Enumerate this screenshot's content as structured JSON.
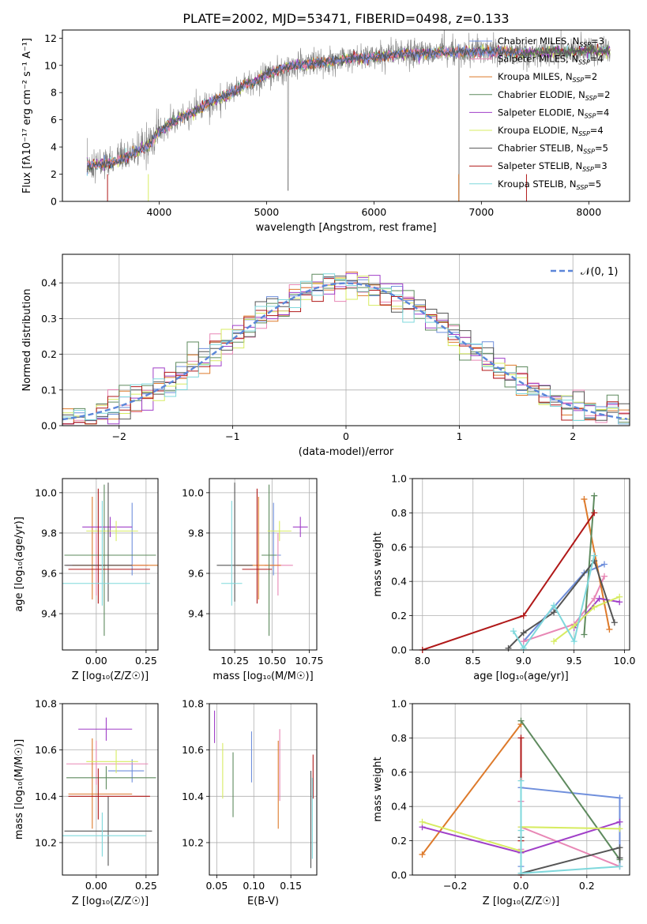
{
  "figure_title": "PLATE=2002, MJD=53471, FIBERID=0498, z=0.133",
  "colors": {
    "chabrier_miles": "#6f8fdc",
    "salpeter_miles": "#e887b5",
    "kroupa_miles": "#dd7a2b",
    "chabrier_elodie": "#5e8a5e",
    "salpeter_elodie": "#a03fc8",
    "kroupa_elodie": "#d7ec62",
    "chabrier_stelib": "#555555",
    "salpeter_stelib": "#b01818",
    "kroupa_stelib": "#7fd8dc",
    "spectrum": "#808080",
    "normal": "#5b86d9",
    "grid": "#b0b0b0"
  },
  "chart_data": [
    {
      "id": "spectrum",
      "type": "line",
      "title": "PLATE=2002, MJD=53471, FIBERID=0498, z=0.133",
      "xlabel": "wavelength [Angstrom, rest frame]",
      "ylabel": "Flux [fλ10⁻¹⁷ erg cm⁻² s⁻¹ A⁻¹]",
      "xlim": [
        3100,
        8380
      ],
      "ylim": [
        0,
        12.6
      ],
      "xticks": [
        4000,
        5000,
        6000,
        7000,
        8000
      ],
      "yticks": [
        0,
        2,
        4,
        6,
        8,
        10,
        12
      ],
      "grid": false,
      "legend_position": "top-right",
      "legend": [
        {
          "label": "Chabrier MILES, N",
          "sub": "SSP",
          "suffix": "=3",
          "color_key": "chabrier_miles"
        },
        {
          "label": "Salpeter MILES, N",
          "sub": "SSP",
          "suffix": "=4",
          "color_key": "salpeter_miles"
        },
        {
          "label": "Kroupa MILES, N",
          "sub": "SSP",
          "suffix": "=2",
          "color_key": "kroupa_miles"
        },
        {
          "label": "Chabrier ELODIE, N",
          "sub": "SSP",
          "suffix": "=2",
          "color_key": "chabrier_elodie"
        },
        {
          "label": "Salpeter ELODIE, N",
          "sub": "SSP",
          "suffix": "=4",
          "color_key": "salpeter_elodie"
        },
        {
          "label": "Kroupa ELODIE, N",
          "sub": "SSP",
          "suffix": "=4",
          "color_key": "kroupa_elodie"
        },
        {
          "label": "Chabrier STELIB, N",
          "sub": "SSP",
          "suffix": "=5",
          "color_key": "chabrier_stelib"
        },
        {
          "label": "Salpeter STELIB, N",
          "sub": "SSP",
          "suffix": "=3",
          "color_key": "salpeter_stelib"
        },
        {
          "label": "Kroupa STELIB, N",
          "sub": "SSP",
          "suffix": "=5",
          "color_key": "kroupa_stelib"
        }
      ],
      "continuum": {
        "x": [
          3330,
          3500,
          3600,
          3700,
          3800,
          3900,
          4000,
          4100,
          4200,
          4300,
          4400,
          4500,
          4600,
          4700,
          4800,
          4900,
          5000,
          5200,
          5400,
          5600,
          5800,
          6000,
          6200,
          6400,
          6600,
          6800,
          7000,
          7200,
          7400,
          7600,
          7800,
          8000,
          8200
        ],
        "y": [
          2.6,
          2.8,
          2.9,
          3.3,
          3.7,
          4.1,
          5.1,
          5.6,
          6.2,
          6.5,
          6.9,
          7.4,
          7.7,
          8.1,
          8.6,
          8.8,
          9.4,
          9.9,
          10.1,
          10.3,
          10.5,
          10.6,
          10.8,
          10.9,
          10.9,
          11.0,
          11.0,
          11.0,
          10.9,
          11.0,
          11.0,
          11.1,
          11.0
        ]
      }
    },
    {
      "id": "residuals",
      "type": "histogram",
      "xlabel": "(data-model)/error",
      "ylabel": "Normed distribution",
      "xlim": [
        -2.5,
        2.5
      ],
      "ylim": [
        0,
        0.48
      ],
      "xticks": [
        -2,
        -1,
        0,
        1,
        2
      ],
      "yticks": [
        0.0,
        0.1,
        0.2,
        0.3,
        0.4
      ],
      "grid": true,
      "legend_position": "top-right",
      "legend": [
        {
          "label": "𝒩(0, 1)",
          "color_key": "normal",
          "style": "dashed"
        }
      ],
      "bin_width": 0.1,
      "normal_curve": {
        "mu": 0,
        "sigma": 1
      }
    },
    {
      "id": "age_vs_Z",
      "type": "errorbar",
      "xlabel": "Z [log₁₀(Z/Z☉)]",
      "ylabel": "age  [log₁₀(age/yr)]",
      "xlim": [
        -0.17,
        0.31
      ],
      "ylim": [
        9.22,
        10.07
      ],
      "xticks": [
        0.0,
        0.25
      ],
      "yticks": [
        9.4,
        9.6,
        9.8,
        10.0
      ],
      "grid": true,
      "points": [
        {
          "model": "chabrier_miles",
          "x": 0.18,
          "y": 9.69,
          "xerr": [
            0.34,
            0.12
          ],
          "yerr": [
            0.1,
            0.26
          ]
        },
        {
          "model": "salpeter_miles",
          "x": 0.0,
          "y": 9.64,
          "xerr": [
            0.15,
            0.26
          ],
          "yerr": [
            0.15,
            0.16
          ]
        },
        {
          "model": "kroupa_miles",
          "x": -0.02,
          "y": 9.64,
          "xerr": [
            0.1,
            0.33
          ],
          "yerr": [
            0.17,
            0.34
          ]
        },
        {
          "model": "chabrier_elodie",
          "x": 0.04,
          "y": 9.69,
          "xerr": [
            0.2,
            0.26
          ],
          "yerr": [
            0.4,
            0.35
          ]
        },
        {
          "model": "salpeter_elodie",
          "x": 0.07,
          "y": 9.83,
          "xerr": [
            0.14,
            0.11
          ],
          "yerr": [
            0.05,
            0.05
          ]
        },
        {
          "model": "kroupa_elodie",
          "x": 0.1,
          "y": 9.81,
          "xerr": [
            0.15,
            0.11
          ],
          "yerr": [
            0.05,
            0.05
          ]
        },
        {
          "model": "chabrier_stelib",
          "x": 0.06,
          "y": 9.64,
          "xerr": [
            0.22,
            0.12
          ],
          "yerr": [
            0.18,
            0.41
          ]
        },
        {
          "model": "salpeter_stelib",
          "x": 0.01,
          "y": 9.62,
          "xerr": [
            0.15,
            0.26
          ],
          "yerr": [
            0.17,
            0.4
          ]
        },
        {
          "model": "kroupa_stelib",
          "x": 0.03,
          "y": 9.55,
          "xerr": [
            0.2,
            0.24
          ],
          "yerr": [
            0.11,
            0.41
          ]
        }
      ]
    },
    {
      "id": "age_vs_mass",
      "type": "errorbar",
      "xlabel": "mass [log₁₀(M/M☉)]",
      "ylabel": "",
      "xlim": [
        10.08,
        10.8
      ],
      "ylim": [
        9.22,
        10.07
      ],
      "xticks": [
        10.25,
        10.5,
        10.75
      ],
      "yticks": [
        9.4,
        9.6,
        9.8,
        10.0
      ],
      "grid": true,
      "points": [
        {
          "model": "chabrier_miles",
          "x": 10.51,
          "y": 9.69,
          "xerr": [
            0.05,
            0.05
          ],
          "yerr": [
            0.1,
            0.26
          ]
        },
        {
          "model": "salpeter_miles",
          "x": 10.54,
          "y": 9.64,
          "xerr": [
            0.09,
            0.1
          ],
          "yerr": [
            0.15,
            0.16
          ]
        },
        {
          "model": "kroupa_miles",
          "x": 10.41,
          "y": 9.64,
          "xerr": [
            0.15,
            0.15
          ],
          "yerr": [
            0.17,
            0.34
          ]
        },
        {
          "model": "chabrier_elodie",
          "x": 10.48,
          "y": 9.69,
          "xerr": [
            0.05,
            0.05
          ],
          "yerr": [
            0.4,
            0.35
          ]
        },
        {
          "model": "salpeter_elodie",
          "x": 10.69,
          "y": 9.83,
          "xerr": [
            0.05,
            0.05
          ],
          "yerr": [
            0.05,
            0.05
          ]
        },
        {
          "model": "kroupa_elodie",
          "x": 10.55,
          "y": 9.81,
          "xerr": [
            0.08,
            0.08
          ],
          "yerr": [
            0.05,
            0.05
          ]
        },
        {
          "model": "chabrier_stelib",
          "x": 10.25,
          "y": 9.64,
          "xerr": [
            0.12,
            0.12
          ],
          "yerr": [
            0.18,
            0.41
          ]
        },
        {
          "model": "salpeter_stelib",
          "x": 10.4,
          "y": 9.62,
          "xerr": [
            0.1,
            0.1
          ],
          "yerr": [
            0.17,
            0.4
          ]
        },
        {
          "model": "kroupa_stelib",
          "x": 10.23,
          "y": 9.55,
          "xerr": [
            0.07,
            0.07
          ],
          "yerr": [
            0.11,
            0.41
          ]
        }
      ]
    },
    {
      "id": "weight_vs_age",
      "type": "line",
      "xlabel": "age  [log₁₀(age/yr)]",
      "ylabel": "mass weight",
      "xlim": [
        7.9,
        10.05
      ],
      "ylim": [
        0,
        1
      ],
      "xticks": [
        8.0,
        8.5,
        9.0,
        9.5,
        10.0
      ],
      "yticks": [
        0.0,
        0.2,
        0.4,
        0.6,
        0.8,
        1.0
      ],
      "grid": true,
      "series": [
        {
          "model": "chabrier_miles",
          "x": [
            9.0,
            9.6,
            9.8
          ],
          "y": [
            0.05,
            0.45,
            0.5
          ]
        },
        {
          "model": "salpeter_miles",
          "x": [
            9.0,
            9.5,
            9.7,
            9.8
          ],
          "y": [
            0.05,
            0.15,
            0.3,
            0.43
          ]
        },
        {
          "model": "kroupa_miles",
          "x": [
            9.6,
            9.85
          ],
          "y": [
            0.88,
            0.12
          ]
        },
        {
          "model": "chabrier_elodie",
          "x": [
            9.6,
            9.7
          ],
          "y": [
            0.09,
            0.9
          ]
        },
        {
          "model": "salpeter_elodie",
          "x": [
            9.5,
            9.75,
            9.95
          ],
          "y": [
            0.13,
            0.3,
            0.28
          ]
        },
        {
          "model": "kroupa_elodie",
          "x": [
            9.3,
            9.5,
            9.7,
            9.95
          ],
          "y": [
            0.05,
            0.14,
            0.25,
            0.31
          ]
        },
        {
          "model": "chabrier_stelib",
          "x": [
            8.85,
            9.0,
            9.3,
            9.7,
            9.9
          ],
          "y": [
            0.01,
            0.1,
            0.22,
            0.52,
            0.16
          ]
        },
        {
          "model": "salpeter_stelib",
          "x": [
            8.0,
            9.0,
            9.7
          ],
          "y": [
            0.0,
            0.2,
            0.8
          ]
        },
        {
          "model": "kroupa_stelib",
          "x": [
            8.9,
            9.0,
            9.3,
            9.5,
            9.7
          ],
          "y": [
            0.11,
            0.01,
            0.26,
            0.05,
            0.55
          ]
        }
      ]
    },
    {
      "id": "mass_vs_Z",
      "type": "errorbar",
      "xlabel": "Z [log₁₀(Z/Z☉)]",
      "ylabel": "mass [log₁₀(M/M☉)]",
      "xlim": [
        -0.17,
        0.31
      ],
      "ylim": [
        10.06,
        10.8
      ],
      "xticks": [
        0.0,
        0.25
      ],
      "yticks": [
        10.2,
        10.4,
        10.6,
        10.8
      ],
      "grid": true,
      "points": [
        {
          "model": "chabrier_miles",
          "x": 0.18,
          "y": 10.51,
          "xerr": [
            0.12,
            0.06
          ],
          "yerr": [
            0.05,
            0.05
          ]
        },
        {
          "model": "salpeter_miles",
          "x": 0.0,
          "y": 10.54,
          "xerr": [
            0.15,
            0.26
          ],
          "yerr": [
            0.09,
            0.1
          ]
        },
        {
          "model": "kroupa_miles",
          "x": -0.02,
          "y": 10.41,
          "xerr": [
            0.12,
            0.2
          ],
          "yerr": [
            0.15,
            0.24
          ]
        },
        {
          "model": "chabrier_elodie",
          "x": 0.05,
          "y": 10.48,
          "xerr": [
            0.2,
            0.25
          ],
          "yerr": [
            0.05,
            0.05
          ]
        },
        {
          "model": "salpeter_elodie",
          "x": 0.05,
          "y": 10.69,
          "xerr": [
            0.14,
            0.13
          ],
          "yerr": [
            0.05,
            0.05
          ]
        },
        {
          "model": "kroupa_elodie",
          "x": 0.1,
          "y": 10.55,
          "xerr": [
            0.15,
            0.11
          ],
          "yerr": [
            0.05,
            0.05
          ]
        },
        {
          "model": "chabrier_stelib",
          "x": 0.06,
          "y": 10.25,
          "xerr": [
            0.22,
            0.22
          ],
          "yerr": [
            0.15,
            0.15
          ]
        },
        {
          "model": "salpeter_stelib",
          "x": 0.01,
          "y": 10.4,
          "xerr": [
            0.15,
            0.26
          ],
          "yerr": [
            0.1,
            0.12
          ]
        },
        {
          "model": "kroupa_stelib",
          "x": 0.03,
          "y": 10.23,
          "xerr": [
            0.2,
            0.22
          ],
          "yerr": [
            0.09,
            0.1
          ]
        }
      ]
    },
    {
      "id": "mass_vs_ebv",
      "type": "errorbar",
      "xlabel": "E(B-V)",
      "ylabel": "",
      "xlim": [
        0.04,
        0.185
      ],
      "ylim": [
        10.06,
        10.8
      ],
      "xticks": [
        0.05,
        0.1,
        0.15
      ],
      "yticks": [
        10.2,
        10.4,
        10.6,
        10.8
      ],
      "grid": true,
      "points": [
        {
          "model": "chabrier_miles",
          "x": 0.097,
          "y": 10.57,
          "xerr": [
            0,
            0
          ],
          "yerr": [
            0.11,
            0.11
          ]
        },
        {
          "model": "salpeter_miles",
          "x": 0.135,
          "y": 10.53,
          "xerr": [
            0,
            0
          ],
          "yerr": [
            0.15,
            0.16
          ]
        },
        {
          "model": "kroupa_miles",
          "x": 0.133,
          "y": 10.44,
          "xerr": [
            0,
            0
          ],
          "yerr": [
            0.18,
            0.2
          ]
        },
        {
          "model": "chabrier_elodie",
          "x": 0.072,
          "y": 10.45,
          "xerr": [
            0,
            0
          ],
          "yerr": [
            0.14,
            0.14
          ]
        },
        {
          "model": "salpeter_elodie",
          "x": 0.047,
          "y": 10.7,
          "xerr": [
            0,
            0
          ],
          "yerr": [
            0.07,
            0.07
          ]
        },
        {
          "model": "kroupa_elodie",
          "x": 0.058,
          "y": 10.51,
          "xerr": [
            0,
            0
          ],
          "yerr": [
            0.12,
            0.12
          ]
        },
        {
          "model": "chabrier_stelib",
          "x": 0.177,
          "y": 10.3,
          "xerr": [
            0,
            0
          ],
          "yerr": [
            0.21,
            0.21
          ]
        },
        {
          "model": "salpeter_stelib",
          "x": 0.18,
          "y": 10.48,
          "xerr": [
            0,
            0
          ],
          "yerr": [
            0.09,
            0.1
          ]
        },
        {
          "model": "kroupa_stelib",
          "x": 0.179,
          "y": 10.3,
          "xerr": [
            0,
            0
          ],
          "yerr": [
            0.17,
            0.18
          ]
        }
      ]
    },
    {
      "id": "weight_vs_Z",
      "type": "line",
      "xlabel": "Z [log₁₀(Z/Z☉)]",
      "ylabel": "mass weight",
      "xlim": [
        -0.33,
        0.33
      ],
      "ylim": [
        0,
        1
      ],
      "xticks": [
        -0.2,
        0.0,
        0.2
      ],
      "yticks": [
        0.0,
        0.2,
        0.4,
        0.6,
        0.8,
        1.0
      ],
      "grid": true,
      "series": [
        {
          "model": "chabrier_miles",
          "x": [
            0.0,
            0.0,
            0.3,
            0.3
          ],
          "y": [
            0.05,
            0.51,
            0.45,
            0.05
          ]
        },
        {
          "model": "salpeter_miles",
          "x": [
            0.0,
            0.0,
            0.0,
            0.3
          ],
          "y": [
            0.43,
            0.15,
            0.28,
            0.05
          ]
        },
        {
          "model": "kroupa_miles",
          "x": [
            -0.3,
            0.0
          ],
          "y": [
            0.12,
            0.88
          ]
        },
        {
          "model": "chabrier_elodie",
          "x": [
            0.0,
            0.3
          ],
          "y": [
            0.9,
            0.09
          ]
        },
        {
          "model": "salpeter_elodie",
          "x": [
            -0.3,
            0.0,
            0.3
          ],
          "y": [
            0.28,
            0.13,
            0.31
          ]
        },
        {
          "model": "kroupa_elodie",
          "x": [
            -0.3,
            0.0,
            0.0,
            0.3
          ],
          "y": [
            0.31,
            0.14,
            0.28,
            0.27
          ]
        },
        {
          "model": "chabrier_stelib",
          "x": [
            0.0,
            0.0,
            0.3,
            0.3
          ],
          "y": [
            0.22,
            0.01,
            0.16,
            0.1
          ]
        },
        {
          "model": "salpeter_stelib",
          "x": [
            0.0,
            0.0,
            0.0
          ],
          "y": [
            0.8,
            0.2,
            0.0
          ]
        },
        {
          "model": "kroupa_stelib",
          "x": [
            0.0,
            0.0,
            0.0,
            0.3
          ],
          "y": [
            0.55,
            0.26,
            0.01,
            0.05
          ]
        }
      ]
    }
  ]
}
